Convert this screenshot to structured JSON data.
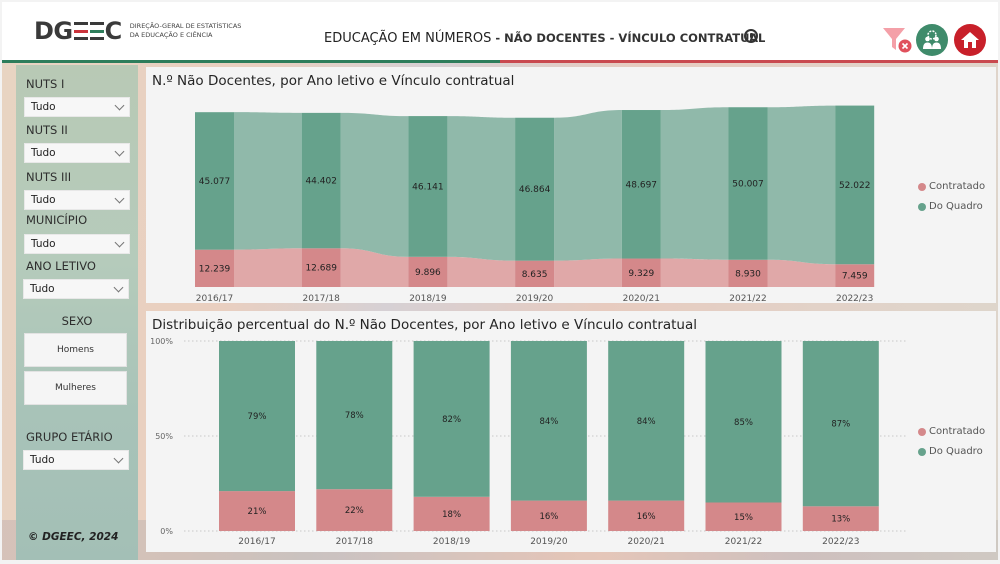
{
  "header": {
    "logo_text": "DGEEC",
    "org_line1": "Direção-Geral de Estatísticas",
    "org_line2": "da Educação e Ciência",
    "title_main": "EDUCAÇÃO EM NÚMEROS",
    "title_sub": " - NÃO DOCENTES - VÍNCULO CONTRATUAL",
    "icons": [
      "info-icon",
      "clear-filter-icon",
      "people-icon",
      "home-icon"
    ]
  },
  "colors": {
    "do_quadro": "#66a28c",
    "do_quadro_ribbon": "#90b9aa",
    "contratado": "#d4888a",
    "contratado_ribbon": "#e0a8a8",
    "accent_green": "#2e7d5b",
    "accent_red": "#c9494f"
  },
  "sidebar": {
    "slicers": [
      {
        "label": "NUTS I",
        "value": "Tudo"
      },
      {
        "label": "NUTS II",
        "value": "Tudo"
      },
      {
        "label": "NUTS III",
        "value": "Tudo"
      },
      {
        "label": "MUNICÍPIO",
        "value": "Tudo"
      },
      {
        "label": "ANO LETIVO",
        "value": "Tudo"
      }
    ],
    "sexo": {
      "label": "SEXO",
      "options": [
        "Homens",
        "Mulheres"
      ]
    },
    "grupo_etario": {
      "label": "GRUPO ETÁRIO",
      "value": "Tudo"
    },
    "copyright": "© DGEEC, 2024"
  },
  "chart_data": [
    {
      "type": "bar",
      "subtype": "stacked-ribbon",
      "title": "N.º Não Docentes, por Ano letivo e Vínculo contratual",
      "categories": [
        "2016/17",
        "2017/18",
        "2018/19",
        "2019/20",
        "2020/21",
        "2021/22",
        "2022/23"
      ],
      "series": [
        {
          "name": "Contratado",
          "values": [
            12239,
            12689,
            9896,
            8635,
            9329,
            8930,
            7459
          ],
          "labels": [
            "12.239",
            "12.689",
            "9.896",
            "8.635",
            "9.329",
            "8.930",
            "7.459"
          ]
        },
        {
          "name": "Do Quadro",
          "values": [
            45077,
            44402,
            46141,
            46864,
            48697,
            50007,
            52022
          ],
          "labels": [
            "45.077",
            "44.402",
            "46.141",
            "46.864",
            "48.697",
            "50.007",
            "52.022"
          ]
        }
      ],
      "legend": [
        "Contratado",
        "Do Quadro"
      ],
      "legend_position": "right",
      "xlabel": "",
      "ylabel": ""
    },
    {
      "type": "bar",
      "subtype": "100%-stacked",
      "title": "Distribuição percentual do N.º Não Docentes, por Ano letivo e Vínculo contratual",
      "categories": [
        "2016/17",
        "2017/18",
        "2018/19",
        "2019/20",
        "2020/21",
        "2021/22",
        "2022/23"
      ],
      "series": [
        {
          "name": "Contratado",
          "values": [
            21,
            22,
            18,
            16,
            16,
            15,
            13
          ],
          "labels": [
            "21%",
            "22%",
            "18%",
            "16%",
            "16%",
            "15%",
            "13%"
          ]
        },
        {
          "name": "Do Quadro",
          "values": [
            79,
            78,
            82,
            84,
            84,
            85,
            87
          ],
          "labels": [
            "79%",
            "78%",
            "82%",
            "84%",
            "84%",
            "85%",
            "87%"
          ]
        }
      ],
      "yticks": [
        "0%",
        "50%",
        "100%"
      ],
      "ylim": [
        0,
        100
      ],
      "grid": true,
      "legend": [
        "Contratado",
        "Do Quadro"
      ],
      "legend_position": "right",
      "xlabel": "",
      "ylabel": ""
    }
  ]
}
